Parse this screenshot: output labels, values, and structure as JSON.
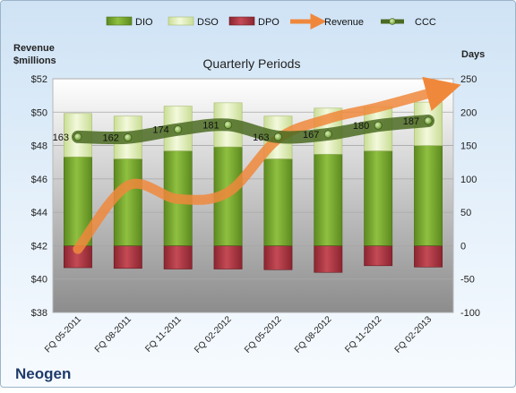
{
  "chart_data": {
    "type": "bar",
    "title": "Quarterly Periods",
    "company": "Neogen",
    "left_axis_label": [
      "Revenue",
      "$millions"
    ],
    "right_axis_label": "Days",
    "left_ticks": [
      "$38",
      "$40",
      "$42",
      "$44",
      "$46",
      "$48",
      "$50",
      "$52"
    ],
    "right_ticks": [
      "-100",
      "-50",
      "0",
      "50",
      "100",
      "150",
      "200",
      "250"
    ],
    "left_ylim": [
      38,
      52
    ],
    "right_ylim": [
      -100,
      250
    ],
    "categories": [
      "FQ 05-2011",
      "FQ 08-2011",
      "FQ 11-2011",
      "FQ 02-2012",
      "FQ 05-2012",
      "FQ 08-2012",
      "FQ 11-2012",
      "FQ 02-2013"
    ],
    "legend_position": "top",
    "grid": true,
    "series": [
      {
        "name": "DIO",
        "type": "stacked-bar",
        "axis": "right",
        "color": "#78a832",
        "values": [
          133,
          130,
          142,
          148,
          130,
          137,
          142,
          150
        ]
      },
      {
        "name": "DSO",
        "type": "stacked-bar",
        "axis": "right",
        "color": "#e4f0c0",
        "values": [
          65,
          64,
          67,
          66,
          64,
          69,
          66,
          65
        ]
      },
      {
        "name": "DPO",
        "type": "stacked-bar",
        "axis": "right",
        "color": "#b73a45",
        "values": [
          -33,
          -34,
          -35,
          -35,
          -36,
          -40,
          -30,
          -32
        ]
      },
      {
        "name": "Revenue",
        "type": "line",
        "axis": "left",
        "color": "#f0883c",
        "values": [
          41.8,
          45.6,
          44.8,
          45.2,
          48.4,
          49.6,
          50.3,
          51.2
        ]
      },
      {
        "name": "CCC",
        "type": "line",
        "axis": "right",
        "color": "#4e7a25",
        "values": [
          163,
          162,
          174,
          181,
          163,
          167,
          180,
          187
        ],
        "labels": [
          "163",
          "162",
          "174",
          "181",
          "163",
          "167",
          "180",
          "187"
        ]
      }
    ]
  }
}
